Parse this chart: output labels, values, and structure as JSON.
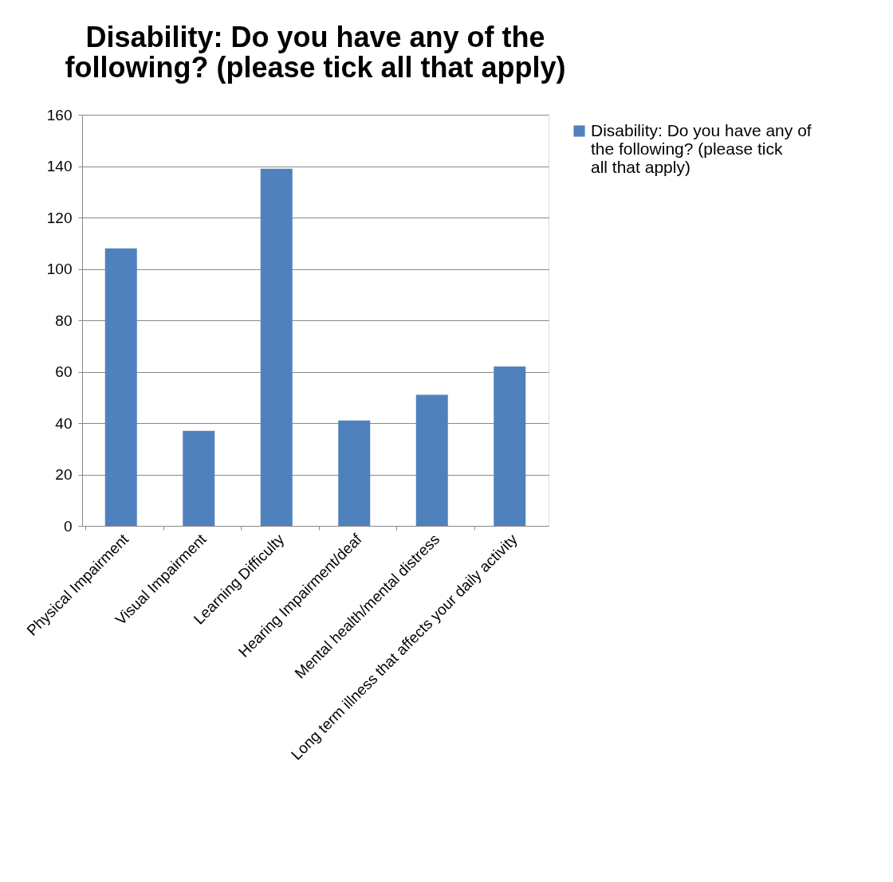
{
  "chart_data": {
    "type": "bar",
    "title": "Disability: Do you have any of the following? (please tick all that apply)",
    "categories": [
      "Physical Impairment",
      "Visual Impairment",
      "Learning Difficulty",
      "Hearing Impairment/deaf",
      "Mental health/mental distress",
      "Long term illness that affects your daily activity"
    ],
    "series": [
      {
        "name": "Disability: Do you have any of the following? (please tick all that apply)",
        "color": "#4f81bd",
        "values": [
          108,
          37,
          139,
          41,
          51,
          62
        ]
      }
    ],
    "ylim": [
      0,
      160
    ],
    "yticks": [
      0,
      20,
      40,
      60,
      80,
      100,
      120,
      140,
      160
    ],
    "grid": "y",
    "legend": "right"
  }
}
